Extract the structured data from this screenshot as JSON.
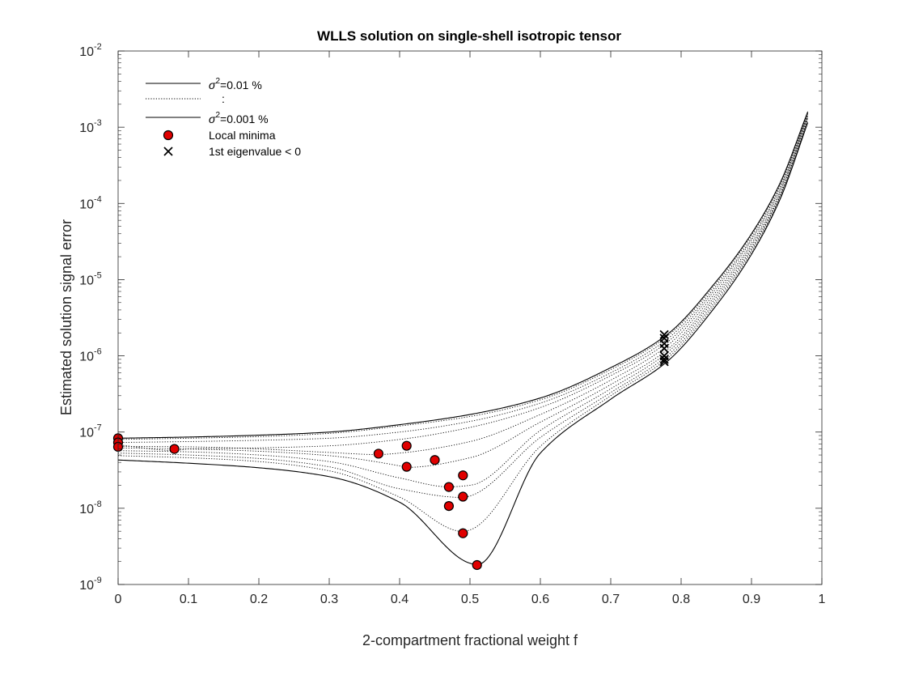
{
  "chart_data": {
    "type": "line",
    "title": "WLLS solution on single-shell isotropic tensor",
    "xlabel": "2-compartment fractional weight f",
    "ylabel": "Estimated solution signal error",
    "xlim": [
      0,
      1
    ],
    "ylim": [
      1e-09,
      0.01
    ],
    "yscale": "log",
    "x_ticks": [
      "0",
      "0.1",
      "0.2",
      "0.3",
      "0.4",
      "0.5",
      "0.6",
      "0.7",
      "0.8",
      "0.9",
      "1"
    ],
    "y_ticks": [
      {
        "base": "10",
        "exp": "-9"
      },
      {
        "base": "10",
        "exp": "-8"
      },
      {
        "base": "10",
        "exp": "-7"
      },
      {
        "base": "10",
        "exp": "-6"
      },
      {
        "base": "10",
        "exp": "-5"
      },
      {
        "base": "10",
        "exp": "-4"
      },
      {
        "base": "10",
        "exp": "-3"
      },
      {
        "base": "10",
        "exp": "-2"
      }
    ],
    "grid": false,
    "legend_position": "top-left",
    "legend": [
      {
        "marker": "solid-line",
        "prefix": "σ",
        "sup": "2",
        "suffix": "=0.01 %"
      },
      {
        "marker": "dotted-line",
        "text": ":"
      },
      {
        "marker": "solid-line",
        "prefix": "σ",
        "sup": "2",
        "suffix": "=0.001 %"
      },
      {
        "marker": "red-circle",
        "text": "Local minima"
      },
      {
        "marker": "x",
        "text": "1st eigenvalue < 0"
      }
    ],
    "curve_x": [
      0,
      0.1,
      0.2,
      0.3,
      0.4,
      0.5,
      0.6,
      0.7,
      0.78,
      0.85,
      0.9,
      0.94,
      0.98
    ],
    "series": [
      {
        "style": "solid",
        "min_x": 0.0,
        "values": [
          8.3e-08,
          8.6e-08,
          9.1e-08,
          1e-07,
          1.25e-07,
          1.7e-07,
          2.8e-07,
          7e-07,
          1.9e-06,
          9.5e-06,
          4e-05,
          0.00018,
          0.0016
        ]
      },
      {
        "style": "dotted",
        "min_x": 0.0,
        "values": [
          8e-08,
          8.3e-08,
          8.7e-08,
          9.6e-08,
          1.2e-07,
          1.6e-07,
          2.65e-07,
          6.6e-07,
          1.8e-06,
          9e-06,
          3.8e-05,
          0.00017,
          0.00155
        ]
      },
      {
        "style": "dotted",
        "min_x": 0.0,
        "values": [
          7.3e-08,
          7.5e-08,
          7.8e-08,
          8.3e-08,
          1e-07,
          1.38e-07,
          2.4e-07,
          6e-07,
          1.65e-06,
          8.3e-06,
          3.5e-05,
          0.00016,
          0.0015
        ]
      },
      {
        "style": "dotted",
        "min_x": 0.08,
        "values": [
          6.8e-08,
          6e-08,
          6.2e-08,
          6.6e-08,
          8e-08,
          1.15e-07,
          2.1e-07,
          5.5e-07,
          1.5e-06,
          7.7e-06,
          3.3e-05,
          0.00015,
          0.00145
        ]
      },
      {
        "style": "dotted",
        "min_x": 0.37,
        "values": [
          6.5e-08,
          6.4e-08,
          6e-08,
          5.4e-08,
          5.3e-08,
          7.5e-08,
          1.7e-07,
          4.8e-07,
          1.35e-06,
          7e-06,
          3e-05,
          0.00014,
          0.0014
        ]
      },
      {
        "style": "dotted",
        "min_x": 0.41,
        "values": [
          6.2e-08,
          6e-08,
          5.6e-08,
          4.9e-08,
          3.6e-08,
          4.6e-08,
          1.35e-07,
          4.2e-07,
          1.2e-06,
          6.4e-06,
          2.8e-05,
          0.00013,
          0.00135
        ]
      },
      {
        "style": "dotted",
        "min_x": 0.47,
        "values": [
          5.7e-08,
          5.5e-08,
          5e-08,
          4.1e-08,
          2.5e-08,
          2e-08,
          1.05e-07,
          3.7e-07,
          1.1e-06,
          5.9e-06,
          2.6e-05,
          0.000125,
          0.0013
        ]
      },
      {
        "style": "dotted",
        "min_x": 0.49,
        "values": [
          5.3e-08,
          5e-08,
          4.5e-08,
          3.5e-08,
          1.8e-08,
          1.45e-08,
          8.5e-08,
          3.3e-07,
          1e-06,
          5.4e-06,
          2.45e-05,
          0.00012,
          0.00125
        ]
      },
      {
        "style": "dotted",
        "min_x": 0.49,
        "values": [
          4.9e-08,
          4.6e-08,
          4.1e-08,
          3.1e-08,
          1.4e-08,
          5.2e-09,
          6.5e-08,
          3e-07,
          9.2e-07,
          5e-06,
          2.3e-05,
          0.000115,
          0.0012
        ]
      },
      {
        "style": "solid",
        "min_x": 0.51,
        "values": [
          4.3e-08,
          3.9e-08,
          3.4e-08,
          2.6e-08,
          1.2e-08,
          1.9e-09,
          5.3e-08,
          2.7e-07,
          8.4e-07,
          4.6e-06,
          2.15e-05,
          0.00011,
          0.00115
        ]
      }
    ],
    "local_minima": [
      {
        "x": 0.0,
        "y": 8.3e-08
      },
      {
        "x": 0.0,
        "y": 7.3e-08
      },
      {
        "x": 0.0,
        "y": 6.4e-08
      },
      {
        "x": 0.08,
        "y": 6e-08
      },
      {
        "x": 0.37,
        "y": 5.2e-08
      },
      {
        "x": 0.41,
        "y": 6.6e-08
      },
      {
        "x": 0.41,
        "y": 3.5e-08
      },
      {
        "x": 0.45,
        "y": 4.3e-08
      },
      {
        "x": 0.49,
        "y": 2.7e-08
      },
      {
        "x": 0.47,
        "y": 1.9e-08
      },
      {
        "x": 0.49,
        "y": 1.42e-08
      },
      {
        "x": 0.47,
        "y": 1.07e-08
      },
      {
        "x": 0.49,
        "y": 4.7e-09
      },
      {
        "x": 0.51,
        "y": 1.8e-09
      }
    ],
    "negative_eigenvalue_marks": [
      {
        "x": 0.776,
        "y": 1.9e-06
      },
      {
        "x": 0.776,
        "y": 1.7e-06
      },
      {
        "x": 0.776,
        "y": 1.45e-06
      },
      {
        "x": 0.776,
        "y": 1.25e-06
      },
      {
        "x": 0.776,
        "y": 1e-06
      },
      {
        "x": 0.776,
        "y": 9e-07
      },
      {
        "x": 0.776,
        "y": 8.4e-07
      }
    ],
    "colors": {
      "marker_fill": "#e00000",
      "marker_edge": "#000000",
      "line": "#000000"
    }
  }
}
